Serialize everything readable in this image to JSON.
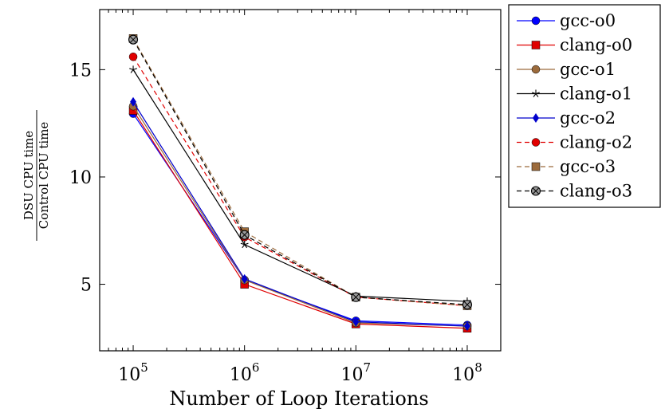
{
  "chart_data": {
    "type": "line",
    "x": [
      100000,
      1000000,
      10000000,
      100000000
    ],
    "x_tick_labels": [
      {
        "base": "10",
        "exp": "5"
      },
      {
        "base": "10",
        "exp": "6"
      },
      {
        "base": "10",
        "exp": "7"
      },
      {
        "base": "10",
        "exp": "8"
      }
    ],
    "x_scale": "log",
    "xlim": [
      50000,
      200000000
    ],
    "xlabel": "Number of Loop Iterations",
    "ylabel": {
      "numerator": "DSU CPU time",
      "denominator": "Control CPU time"
    },
    "yticks": [
      5,
      10,
      15
    ],
    "ylim": [
      1.9,
      17.8
    ],
    "grid": false,
    "legend_position": "outside-right",
    "series": [
      {
        "name": "gcc-o0",
        "color": "#0000ff",
        "marker": "circle",
        "dash": "solid",
        "values": [
          12.95,
          5.2,
          3.3,
          3.1
        ]
      },
      {
        "name": "clang-o0",
        "color": "#e00000",
        "marker": "square",
        "dash": "solid",
        "values": [
          13.1,
          5.0,
          3.15,
          2.95
        ]
      },
      {
        "name": "gcc-o1",
        "color": "#9c6b3c",
        "marker": "circle",
        "dash": "solid",
        "values": [
          13.3,
          5.2,
          3.2,
          3.05
        ]
      },
      {
        "name": "clang-o1",
        "color": "#000000",
        "marker": "star",
        "dash": "solid",
        "values": [
          15.0,
          6.85,
          4.45,
          4.2
        ]
      },
      {
        "name": "gcc-o2",
        "color": "#0000cc",
        "marker": "diamond",
        "dash": "solid",
        "values": [
          13.5,
          5.25,
          3.25,
          3.05
        ]
      },
      {
        "name": "clang-o2",
        "color": "#e00000",
        "marker": "circle",
        "dash": "dashed",
        "values": [
          15.6,
          7.2,
          4.4,
          4.0
        ]
      },
      {
        "name": "gcc-o3",
        "color": "#9c6b3c",
        "marker": "square",
        "dash": "dashed",
        "values": [
          16.45,
          7.45,
          4.4,
          4.0
        ]
      },
      {
        "name": "clang-o3",
        "color": "#000000",
        "marker": "circle-otimes",
        "dash": "dashed",
        "values": [
          16.4,
          7.3,
          4.4,
          4.05
        ]
      }
    ]
  }
}
